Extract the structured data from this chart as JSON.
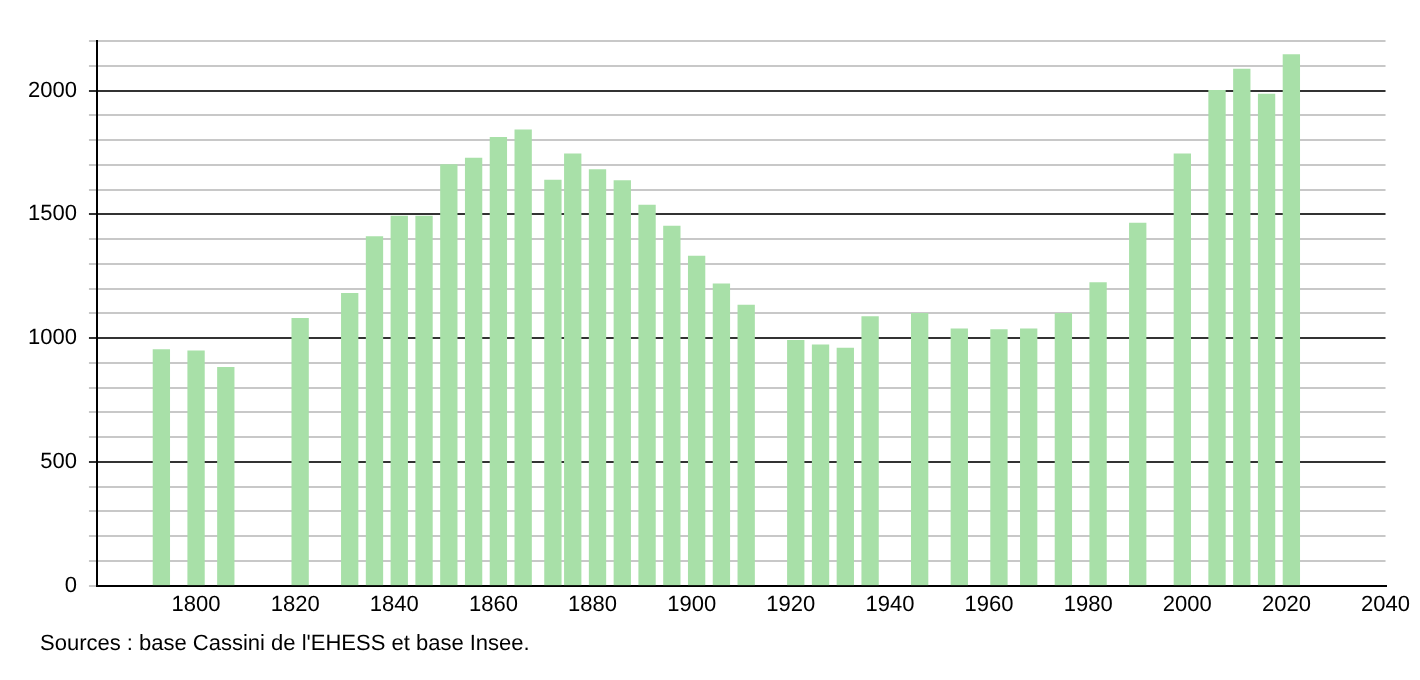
{
  "chart_data": {
    "type": "bar",
    "x": [
      1793,
      1800,
      1806,
      1821,
      1831,
      1836,
      1841,
      1846,
      1851,
      1856,
      1861,
      1866,
      1872,
      1876,
      1881,
      1886,
      1891,
      1896,
      1901,
      1906,
      1911,
      1921,
      1926,
      1931,
      1936,
      1946,
      1954,
      1962,
      1968,
      1975,
      1982,
      1990,
      1999,
      2006,
      2011,
      2016,
      2021
    ],
    "values": [
      952,
      947,
      881,
      1079,
      1180,
      1409,
      1492,
      1492,
      1700,
      1726,
      1810,
      1840,
      1637,
      1744,
      1680,
      1635,
      1536,
      1452,
      1330,
      1218,
      1132,
      990,
      972,
      959,
      1086,
      1099,
      1036,
      1033,
      1036,
      1099,
      1223,
      1464,
      1744,
      2000,
      2086,
      1985,
      2145
    ],
    "color": "#a8e0a8",
    "xlim": [
      1780,
      2040
    ],
    "xticks": [
      1800,
      1820,
      1840,
      1860,
      1880,
      1900,
      1920,
      1940,
      1960,
      1980,
      2000,
      2020,
      2040
    ],
    "ylim": [
      0,
      2200
    ],
    "yticks": [
      0,
      {
        "value": 100,
        "label": null
      },
      {
        "value": 200,
        "label": null
      },
      {
        "value": 300,
        "label": null
      },
      {
        "value": 400,
        "label": null
      },
      500,
      {
        "value": 600,
        "label": null
      },
      {
        "value": 700,
        "label": null
      },
      {
        "value": 800,
        "label": null
      },
      {
        "value": 900,
        "label": null
      },
      1000,
      {
        "value": 1100,
        "label": null
      },
      {
        "value": 1200,
        "label": null
      },
      {
        "value": 1300,
        "label": null
      },
      {
        "value": 1400,
        "label": null
      },
      1500,
      {
        "value": 1600,
        "label": null
      },
      {
        "value": 1700,
        "label": null
      },
      {
        "value": 1800,
        "label": null
      },
      {
        "value": 1900,
        "label": null
      },
      2000,
      {
        "value": 2100,
        "label": null
      },
      {
        "value": 2200,
        "label": null
      }
    ],
    "grid": "y",
    "annotations": [
      "Sources : base Cassini de l'EHESS et base Insee."
    ]
  }
}
